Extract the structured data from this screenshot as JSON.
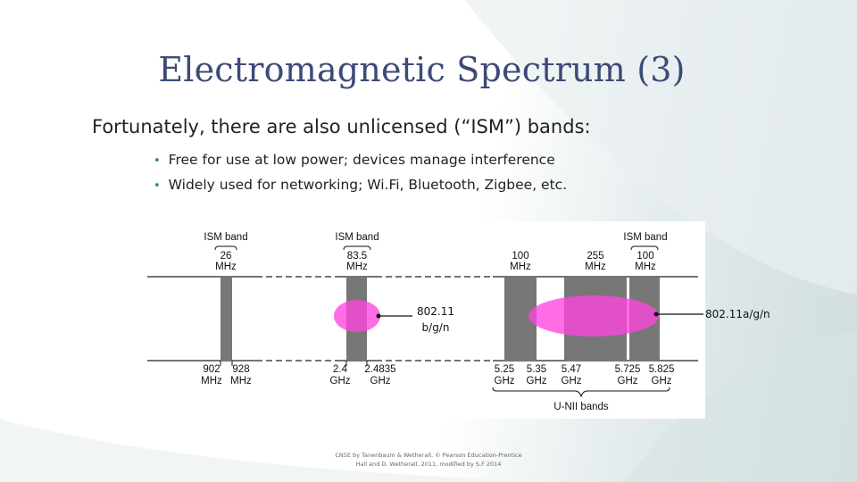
{
  "slide": {
    "title": "Electromagnetic Spectrum (3)",
    "intro": "Fortunately, there are also unlicensed (“ISM”) bands:",
    "bullets": [
      "Free for use at low power; devices manage interference",
      "Widely used for networking; Wi.Fi, Bluetooth, Zigbee, etc."
    ],
    "credit_line1": "CN5E by Tanenbaum & Wetherall, © Pearson Education-Prentice",
    "credit_line2": "Hall and D. Wetherall, 2011, modified by S.F 2014"
  },
  "figure": {
    "ism_band_label": "ISM band",
    "bandwidths": {
      "b900_value": "26",
      "b24_value": "83.5",
      "b52_value": "100",
      "b55_value": "255",
      "b57_value": "100",
      "unit": "MHz"
    },
    "frequencies": [
      {
        "value": "902",
        "unit": "MHz"
      },
      {
        "value": "928",
        "unit": "MHz"
      },
      {
        "value": "2.4",
        "unit": "GHz"
      },
      {
        "value": "2.4835",
        "unit": "GHz"
      },
      {
        "value": "5.25",
        "unit": "GHz"
      },
      {
        "value": "5.35",
        "unit": "GHz"
      },
      {
        "value": "5.47",
        "unit": "GHz"
      },
      {
        "value": "5.725",
        "unit": "GHz"
      },
      {
        "value": "5.825",
        "unit": "GHz"
      }
    ],
    "unii_label": "U-NII bands",
    "wifi_bgn_line1": "802.11",
    "wifi_bgn_line2": "b/g/n",
    "wifi_agn": "802.11a/g/n",
    "colors": {
      "band_fill": "#777777",
      "highlight": "#ff44e0"
    }
  }
}
